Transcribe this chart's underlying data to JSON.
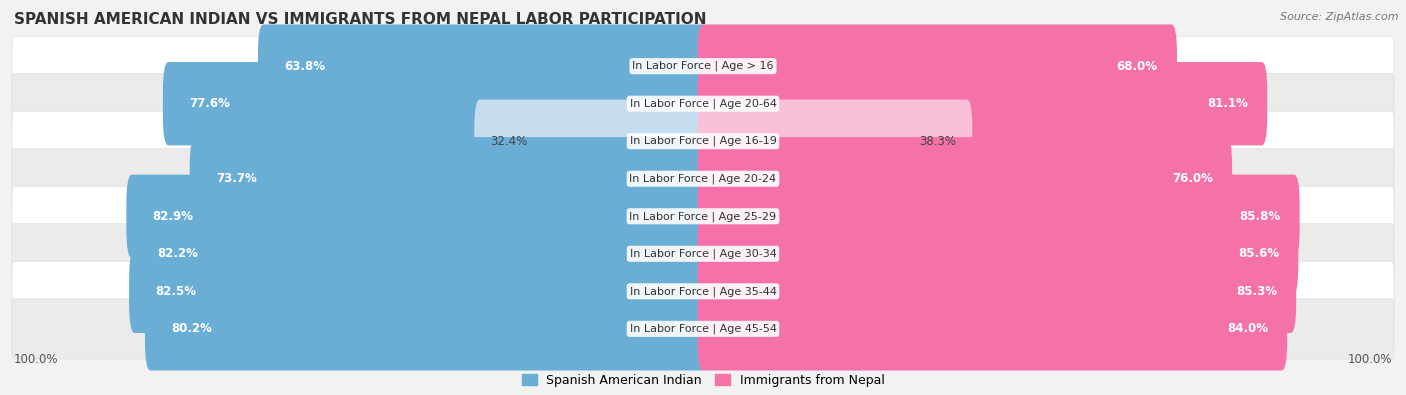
{
  "title": "Spanish American Indian vs Immigrants from Nepal Labor Participation",
  "source": "Source: ZipAtlas.com",
  "categories": [
    "In Labor Force | Age > 16",
    "In Labor Force | Age 20-64",
    "In Labor Force | Age 16-19",
    "In Labor Force | Age 20-24",
    "In Labor Force | Age 25-29",
    "In Labor Force | Age 30-34",
    "In Labor Force | Age 35-44",
    "In Labor Force | Age 45-54"
  ],
  "spanish_values": [
    63.8,
    77.6,
    32.4,
    73.7,
    82.9,
    82.2,
    82.5,
    80.2
  ],
  "nepal_values": [
    68.0,
    81.1,
    38.3,
    76.0,
    85.8,
    85.6,
    85.3,
    84.0
  ],
  "spanish_color": "#6aaed6",
  "nepal_color": "#f472a8",
  "spanish_color_light": "#c6dcef",
  "nepal_color_light": "#f9c0d8",
  "label_spanish": "Spanish American Indian",
  "label_nepal": "Immigrants from Nepal",
  "bg_color": "#f2f2f2",
  "row_colors": [
    "#ffffff",
    "#ebebeb"
  ],
  "max_val": 100.0,
  "title_fontsize": 11,
  "source_fontsize": 8,
  "bar_height": 0.62,
  "axis_label_left": "100.0%",
  "axis_label_right": "100.0%"
}
